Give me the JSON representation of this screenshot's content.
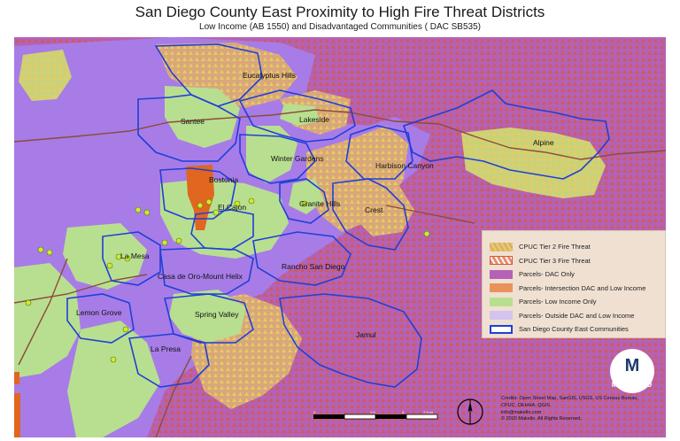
{
  "title": "San Diego County East Proximity to High Fire Threat Districts",
  "subtitle": "Low Income (AB 1550) and Disadvantaged Communities ( DAC SB535)",
  "colors": {
    "outside": "#a77ce7",
    "low_income": "#b8df90",
    "dac_only": "#b462b6",
    "intersection": "#e1661f",
    "tier2_fill": "#e8cb5f",
    "tier3_fill": "#e48f6e",
    "boundary": "#1f3fd8",
    "road": "#8a4c3a",
    "dots": "#cfea2e",
    "logo_bg": "#1d3b6e"
  },
  "places": [
    {
      "name": "Eucalyptus Hills"
    },
    {
      "name": "Santee"
    },
    {
      "name": "Lakeside"
    },
    {
      "name": "Alpine"
    },
    {
      "name": "Winter Gardens"
    },
    {
      "name": "Harbison Canyon"
    },
    {
      "name": "Bostonia"
    },
    {
      "name": "El Cajon"
    },
    {
      "name": "Granite Hills"
    },
    {
      "name": "Crest"
    },
    {
      "name": "La Mesa"
    },
    {
      "name": "Rancho San Diego"
    },
    {
      "name": "Casa de Oro-Mount Helix"
    },
    {
      "name": "Lemon Grove"
    },
    {
      "name": "Spring Valley"
    },
    {
      "name": "La Presa"
    },
    {
      "name": "Jamul"
    }
  ],
  "legend": [
    {
      "label": "CPUC Tier 2 Fire Threat",
      "swatch": "tier2"
    },
    {
      "label": "CPUC Tier 3 Fire Threat",
      "swatch": "tier3"
    },
    {
      "label": "Parcels- DAC Only",
      "swatch": "dac"
    },
    {
      "label": "Parcels- Intersection DAC and Low Income",
      "swatch": "intersection"
    },
    {
      "label": "Parcels- Low Income Only",
      "swatch": "lowincome"
    },
    {
      "label": "Parcels- Outside DAC and Low Income",
      "swatch": "outside"
    },
    {
      "label": "San Diego County East Communities",
      "swatch": "boundary"
    }
  ],
  "logo": {
    "letter": "M",
    "name": "MAKELLO"
  },
  "credits": [
    "Credits: Open Street Map, SanGIS, USGS, US Census Bureau,",
    "CPUC, OEHHA, QGIS",
    "info@makello.com",
    "© 2020 Makello. All Rights Reserved."
  ],
  "scalebar": {
    "ticks": [
      "0",
      "2.5",
      "5",
      "7.5 mi"
    ]
  }
}
